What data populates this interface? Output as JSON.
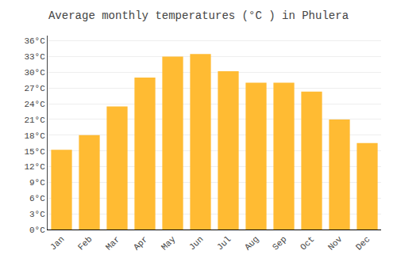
{
  "chart_data": {
    "type": "bar",
    "title": "Average monthly temperatures (°C ) in Phulera",
    "categories": [
      "Jan",
      "Feb",
      "Mar",
      "Apr",
      "May",
      "Jun",
      "Jul",
      "Aug",
      "Sep",
      "Oct",
      "Nov",
      "Dec"
    ],
    "values": [
      15.2,
      18.0,
      23.5,
      29.0,
      33.0,
      33.5,
      30.2,
      28.0,
      28.0,
      26.3,
      21.0,
      16.5
    ],
    "color": "#FFBB33",
    "ylim": [
      0,
      37
    ],
    "yticks": [
      {
        "value": 0,
        "label": "0°C"
      },
      {
        "value": 3,
        "label": "3°C"
      },
      {
        "value": 6,
        "label": "6°C"
      },
      {
        "value": 9,
        "label": "9°C"
      },
      {
        "value": 12,
        "label": "12°C"
      },
      {
        "value": 15,
        "label": "15°C"
      },
      {
        "value": 18,
        "label": "18°C"
      },
      {
        "value": 21,
        "label": "21°C"
      },
      {
        "value": 24,
        "label": "24°C"
      },
      {
        "value": 27,
        "label": "27°C"
      },
      {
        "value": 30,
        "label": "30°C"
      },
      {
        "value": 33,
        "label": "33°C"
      },
      {
        "value": 36,
        "label": "36°C"
      }
    ],
    "grid": true
  }
}
